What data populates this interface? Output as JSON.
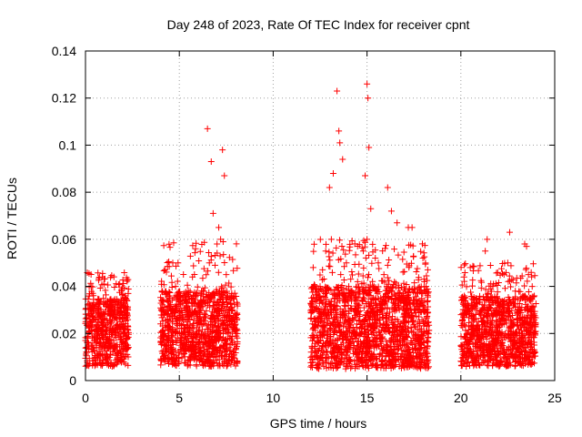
{
  "chart_data": {
    "type": "scatter",
    "title": "Day 248 of 2023, Rate Of TEC Index for receiver cpnt",
    "xlabel": "GPS time / hours",
    "ylabel": "ROTI / TECUs",
    "xlim": [
      0,
      25
    ],
    "ylim": [
      0,
      0.14
    ],
    "xticks": [
      0,
      5,
      10,
      15,
      20,
      25
    ],
    "xtick_labels": [
      "0",
      "5",
      "10",
      "15",
      "20",
      "25"
    ],
    "yticks": [
      0,
      0.02,
      0.04,
      0.06,
      0.08,
      0.1,
      0.12,
      0.14
    ],
    "ytick_labels": [
      "0",
      "0.02",
      "0.04",
      "0.06",
      "0.08",
      "0.1",
      "0.12",
      "0.14"
    ],
    "grid": true,
    "marker": "+",
    "color": "#ff0000",
    "series": [
      {
        "name": "ROTI",
        "x": [
          0.1,
          0.4,
          0.6,
          0.9,
          1.2,
          1.5,
          1.8,
          2.1,
          0.5,
          1.0,
          1.7,
          2.2,
          0.3,
          0.8,
          1.3,
          2.0,
          4.2,
          4.5,
          4.8,
          5.1,
          5.4,
          5.7,
          6.0,
          6.3,
          6.6,
          6.9,
          7.2,
          7.5,
          7.8,
          8.0,
          6.5,
          6.7,
          7.3,
          7.4,
          6.8,
          7.1,
          5.0,
          4.6,
          12.2,
          12.5,
          12.8,
          13.1,
          13.3,
          13.6,
          13.9,
          14.2,
          14.5,
          14.8,
          15.0,
          15.3,
          15.6,
          15.9,
          16.2,
          16.5,
          16.8,
          17.1,
          17.4,
          17.7,
          18.0,
          13.4,
          13.5,
          13.55,
          13.7,
          15.0,
          15.05,
          15.1,
          14.9,
          13.2,
          13.0,
          16.1,
          16.3,
          15.2,
          17.2,
          16.6,
          20.2,
          20.5,
          20.8,
          21.1,
          21.4,
          21.7,
          22.0,
          22.3,
          22.6,
          22.9,
          23.2,
          23.5,
          23.8,
          21.3,
          22.5,
          23.4,
          23.6,
          20.3,
          21.5,
          22.8
        ],
        "y": [
          0.018,
          0.032,
          0.022,
          0.044,
          0.015,
          0.028,
          0.02,
          0.036,
          0.01,
          0.026,
          0.012,
          0.03,
          0.04,
          0.016,
          0.034,
          0.024,
          0.02,
          0.035,
          0.04,
          0.018,
          0.028,
          0.044,
          0.025,
          0.038,
          0.05,
          0.03,
          0.06,
          0.045,
          0.035,
          0.02,
          0.107,
          0.093,
          0.098,
          0.087,
          0.071,
          0.065,
          0.012,
          0.008,
          0.03,
          0.04,
          0.055,
          0.06,
          0.035,
          0.045,
          0.05,
          0.038,
          0.042,
          0.055,
          0.06,
          0.04,
          0.05,
          0.045,
          0.038,
          0.032,
          0.02,
          0.035,
          0.065,
          0.03,
          0.025,
          0.123,
          0.106,
          0.101,
          0.094,
          0.126,
          0.12,
          0.099,
          0.087,
          0.088,
          0.082,
          0.082,
          0.072,
          0.073,
          0.065,
          0.067,
          0.03,
          0.048,
          0.035,
          0.025,
          0.06,
          0.04,
          0.032,
          0.045,
          0.063,
          0.038,
          0.03,
          0.057,
          0.04,
          0.055,
          0.05,
          0.058,
          0.045,
          0.012,
          0.02,
          0.015
        ]
      }
    ],
    "dense_bands": [
      {
        "x_start": 0.0,
        "x_end": 2.3,
        "y_low": 0.006,
        "y_high": 0.035,
        "y_max": 0.046
      },
      {
        "x_start": 4.0,
        "x_end": 8.1,
        "y_low": 0.006,
        "y_high": 0.038,
        "y_max": 0.06
      },
      {
        "x_start": 12.0,
        "x_end": 18.3,
        "y_low": 0.005,
        "y_high": 0.04,
        "y_max": 0.06
      },
      {
        "x_start": 20.0,
        "x_end": 24.0,
        "y_low": 0.006,
        "y_high": 0.036,
        "y_max": 0.05
      }
    ]
  }
}
